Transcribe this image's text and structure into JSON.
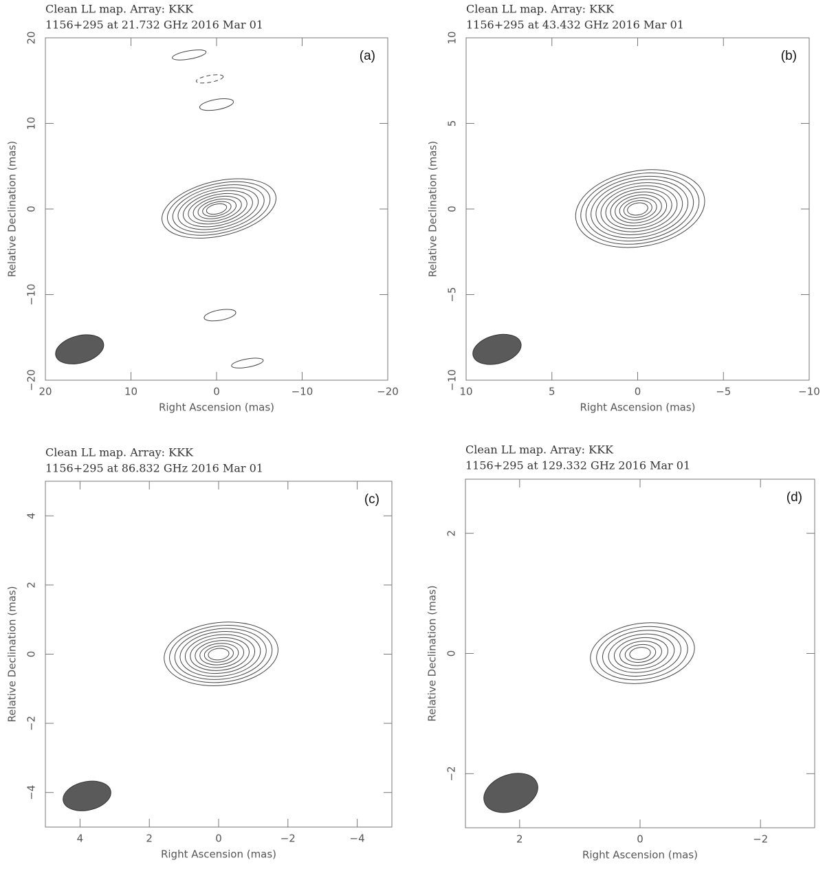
{
  "chart_data": [
    {
      "type": "contour",
      "title": "Clean LL map.  Array:  KKK",
      "subtitle": "1156+295 at 21.732 GHz 2016 Mar 01",
      "panel_label": "(a)",
      "x_label": "Right Ascension  (mas)",
      "y_label": "Relative Declination  (mas)",
      "xlim": [
        20,
        -20
      ],
      "ylim": [
        -20,
        20
      ],
      "xticks": [
        20,
        10,
        0,
        {
          "value": -10,
          "label": "−10"
        },
        {
          "value": -20,
          "label": "−20"
        }
      ],
      "yticks": [
        {
          "value": -20,
          "label": "−20"
        },
        {
          "value": -10,
          "label": "−10"
        },
        0,
        10,
        20
      ]
    },
    {
      "type": "contour",
      "title": "Clean LL map.  Array:  KKK",
      "subtitle": "1156+295 at 43.432 GHz 2016 Mar 01",
      "panel_label": "(b)",
      "x_label": "Right Ascension  (mas)",
      "y_label": "Relative Declination  (mas)",
      "xlim": [
        10,
        -10
      ],
      "ylim": [
        -10,
        10
      ],
      "xticks": [
        10,
        5,
        0,
        {
          "value": -5,
          "label": "−5"
        },
        {
          "value": -10,
          "label": "−10"
        }
      ],
      "yticks": [
        {
          "value": -10,
          "label": "−10"
        },
        {
          "value": -5,
          "label": "−5"
        },
        0,
        5,
        10
      ]
    },
    {
      "type": "contour",
      "title": "Clean LL map.  Array:  KKK",
      "subtitle": "1156+295 at 86.832 GHz 2016 Mar 01",
      "panel_label": "(c)",
      "x_label": "Right Ascension  (mas)",
      "y_label": "Relative Declination  (mas)",
      "xlim": [
        5,
        -5
      ],
      "ylim": [
        -5,
        5
      ],
      "xticks": [
        4,
        2,
        0,
        {
          "value": -2,
          "label": "−2"
        },
        {
          "value": -4,
          "label": "−4"
        }
      ],
      "yticks": [
        {
          "value": -4,
          "label": "−4"
        },
        {
          "value": -2,
          "label": "−2"
        },
        0,
        2,
        4
      ]
    },
    {
      "type": "contour",
      "title": "Clean LL map.  Array:  KKK",
      "subtitle": "1156+295 at 129.332 GHz 2016 Mar 01",
      "panel_label": "(d)",
      "x_label": "Right Ascension  (mas)",
      "y_label": "Relative Declination  (mas)",
      "xlim": [
        2.9,
        -2.9
      ],
      "ylim": [
        -2.9,
        2.9
      ],
      "xticks": [
        2,
        0,
        {
          "value": -2,
          "label": "−2"
        }
      ],
      "yticks": [
        {
          "value": -2,
          "label": "−2"
        },
        0,
        2
      ]
    }
  ]
}
